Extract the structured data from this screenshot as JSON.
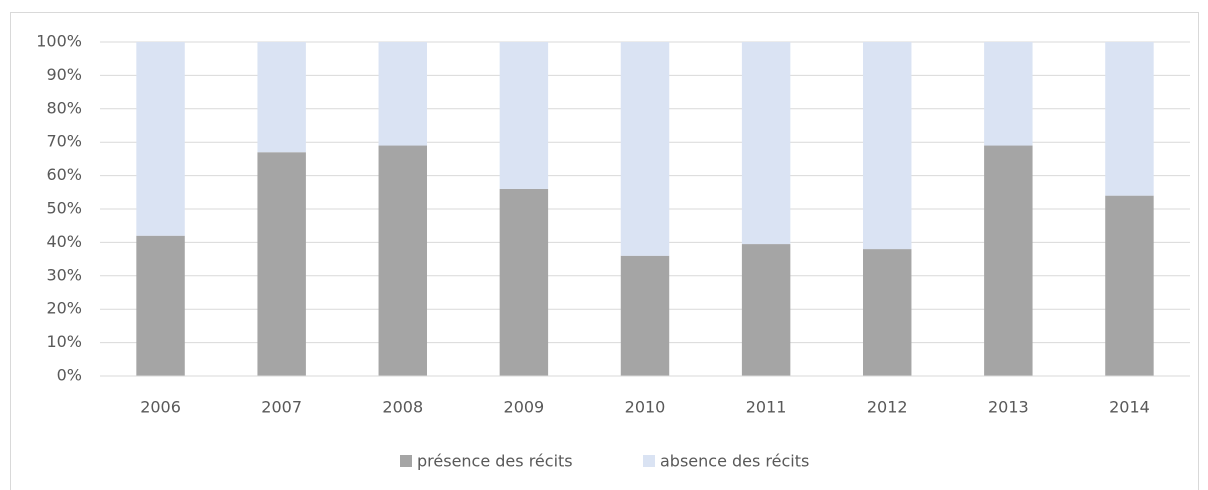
{
  "chart_data": {
    "type": "stacked_bar",
    "categories": [
      "2006",
      "2007",
      "2008",
      "2009",
      "2010",
      "2011",
      "2012",
      "2013",
      "2014"
    ],
    "series": [
      {
        "name": "présence des récits",
        "color": "#a5a5a5",
        "values": [
          42,
          67,
          69,
          56,
          36,
          39.5,
          38,
          69,
          54
        ]
      },
      {
        "name": "absence des récits",
        "color": "#dae3f3",
        "values": [
          58,
          33,
          31,
          44,
          64,
          60.5,
          62,
          31,
          46
        ]
      }
    ],
    "ylim": [
      0,
      100
    ],
    "yticks": [
      {
        "value": 0,
        "label": "0%"
      },
      {
        "value": 10,
        "label": "10%"
      },
      {
        "value": 20,
        "label": "20%"
      },
      {
        "value": 30,
        "label": "30%"
      },
      {
        "value": 40,
        "label": "40%"
      },
      {
        "value": 50,
        "label": "50%"
      },
      {
        "value": 60,
        "label": "60%"
      },
      {
        "value": 70,
        "label": "70%"
      },
      {
        "value": 80,
        "label": "80%"
      },
      {
        "value": 90,
        "label": "90%"
      },
      {
        "value": 100,
        "label": "100%"
      }
    ],
    "grid": true,
    "legend": "bottom"
  }
}
